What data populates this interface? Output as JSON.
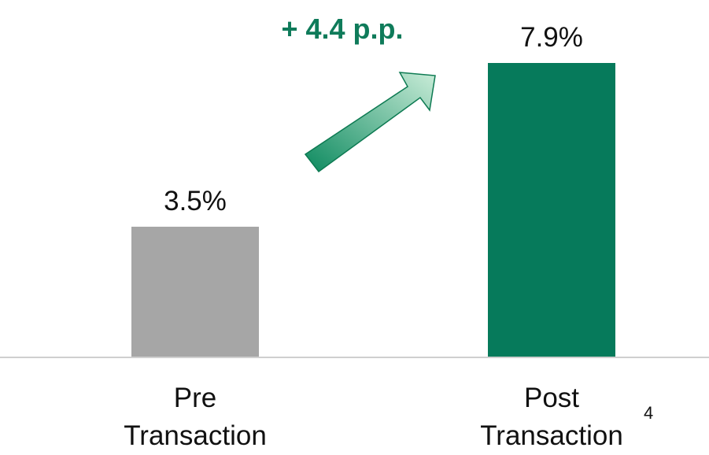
{
  "chart_data": {
    "type": "bar",
    "categories": [
      "Pre Transaction",
      "Post Transaction"
    ],
    "values": [
      3.5,
      7.9
    ],
    "value_labels": [
      "3.5%",
      "7.9%"
    ],
    "colors": [
      "#a6a6a6",
      "#067a5b"
    ],
    "annotation": "+ 4.4 p.p.",
    "footnote": "4"
  }
}
